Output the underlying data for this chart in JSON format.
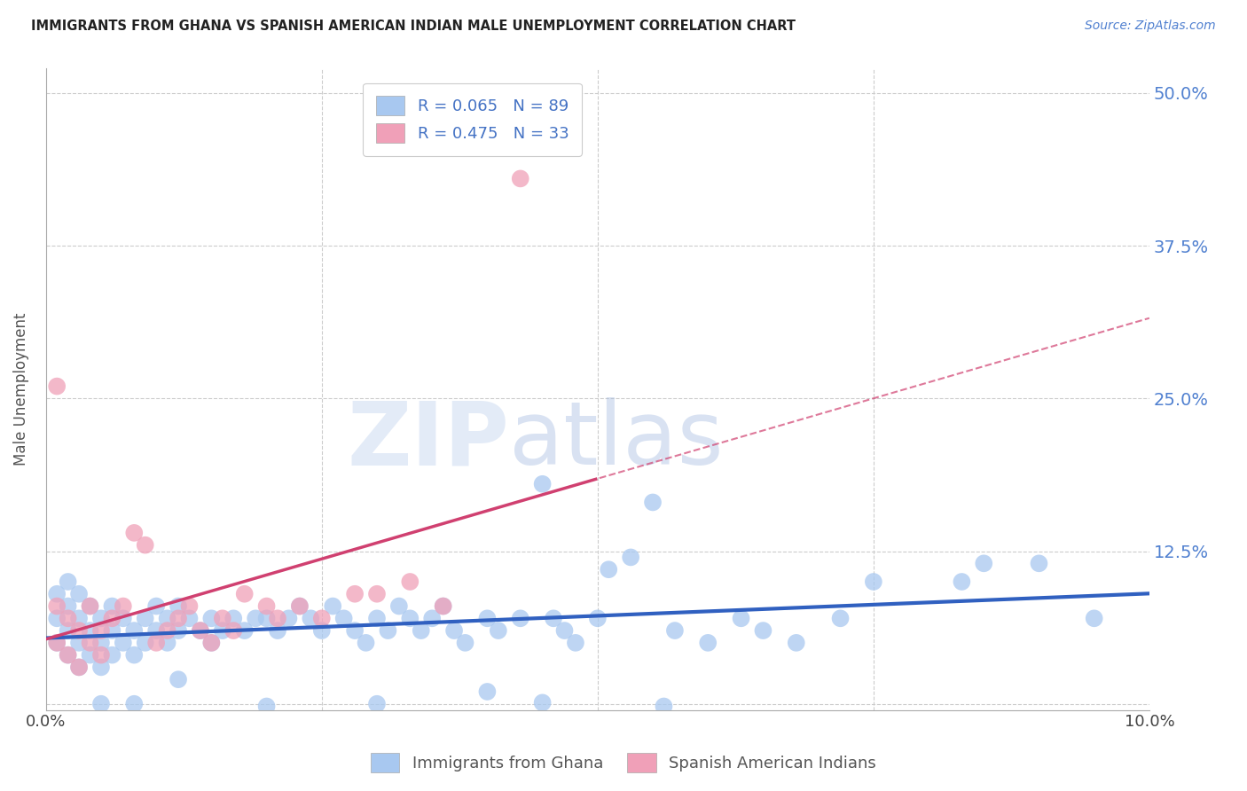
{
  "title": "IMMIGRANTS FROM GHANA VS SPANISH AMERICAN INDIAN MALE UNEMPLOYMENT CORRELATION CHART",
  "source": "Source: ZipAtlas.com",
  "ylabel": "Male Unemployment",
  "legend1_label": "Immigrants from Ghana",
  "legend2_label": "Spanish American Indians",
  "R1": 0.065,
  "N1": 89,
  "R2": 0.475,
  "N2": 33,
  "color_blue": "#a8c8f0",
  "color_pink": "#f0a0b8",
  "line_color_blue": "#3060c0",
  "line_color_pink": "#d04070",
  "watermark_zip": "ZIP",
  "watermark_atlas": "atlas",
  "background_color": "#ffffff",
  "grid_color": "#cccccc",
  "title_color": "#222222",
  "source_color": "#5080d0",
  "legend_text_color": "#4472c4",
  "tick_color": "#5080d0",
  "xlim": [
    0.0,
    0.1
  ],
  "ylim": [
    -0.005,
    0.52
  ],
  "y_ticks": [
    0.0,
    0.125,
    0.25,
    0.375,
    0.5
  ],
  "y_tick_labels": [
    "",
    "12.5%",
    "25.0%",
    "37.5%",
    "50.0%"
  ],
  "ghana_points_x": [
    0.001,
    0.001,
    0.001,
    0.002,
    0.002,
    0.002,
    0.002,
    0.003,
    0.003,
    0.003,
    0.003,
    0.004,
    0.004,
    0.004,
    0.005,
    0.005,
    0.005,
    0.006,
    0.006,
    0.006,
    0.007,
    0.007,
    0.008,
    0.008,
    0.009,
    0.009,
    0.01,
    0.01,
    0.011,
    0.011,
    0.012,
    0.012,
    0.013,
    0.014,
    0.015,
    0.015,
    0.016,
    0.017,
    0.018,
    0.019,
    0.02,
    0.021,
    0.022,
    0.023,
    0.024,
    0.025,
    0.026,
    0.027,
    0.028,
    0.029,
    0.03,
    0.031,
    0.032,
    0.033,
    0.034,
    0.035,
    0.036,
    0.037,
    0.038,
    0.04,
    0.041,
    0.043,
    0.045,
    0.046,
    0.047,
    0.048,
    0.05,
    0.051,
    0.053,
    0.055,
    0.057,
    0.06,
    0.063,
    0.065,
    0.068,
    0.072,
    0.075,
    0.083,
    0.085,
    0.09,
    0.095,
    0.005,
    0.008,
    0.012,
    0.02,
    0.03,
    0.04,
    0.045,
    0.056
  ],
  "ghana_points_y": [
    0.05,
    0.07,
    0.09,
    0.04,
    0.06,
    0.08,
    0.1,
    0.03,
    0.05,
    0.07,
    0.09,
    0.04,
    0.06,
    0.08,
    0.03,
    0.05,
    0.07,
    0.04,
    0.06,
    0.08,
    0.05,
    0.07,
    0.04,
    0.06,
    0.05,
    0.07,
    0.06,
    0.08,
    0.05,
    0.07,
    0.06,
    0.08,
    0.07,
    0.06,
    0.05,
    0.07,
    0.06,
    0.07,
    0.06,
    0.07,
    0.07,
    0.06,
    0.07,
    0.08,
    0.07,
    0.06,
    0.08,
    0.07,
    0.06,
    0.05,
    0.07,
    0.06,
    0.08,
    0.07,
    0.06,
    0.07,
    0.08,
    0.06,
    0.05,
    0.07,
    0.06,
    0.07,
    0.18,
    0.07,
    0.06,
    0.05,
    0.07,
    0.11,
    0.12,
    0.165,
    0.06,
    0.05,
    0.07,
    0.06,
    0.05,
    0.07,
    0.1,
    0.1,
    0.115,
    0.115,
    0.07,
    0.0,
    0.0,
    0.02,
    -0.002,
    0.0,
    0.01,
    0.001,
    -0.002
  ],
  "sai_points_x": [
    0.001,
    0.001,
    0.002,
    0.002,
    0.003,
    0.003,
    0.004,
    0.004,
    0.005,
    0.005,
    0.006,
    0.007,
    0.008,
    0.009,
    0.01,
    0.011,
    0.012,
    0.013,
    0.014,
    0.015,
    0.016,
    0.017,
    0.018,
    0.02,
    0.021,
    0.023,
    0.025,
    0.028,
    0.03,
    0.033,
    0.036,
    0.001,
    0.043
  ],
  "sai_points_y": [
    0.05,
    0.08,
    0.04,
    0.07,
    0.03,
    0.06,
    0.05,
    0.08,
    0.04,
    0.06,
    0.07,
    0.08,
    0.14,
    0.13,
    0.05,
    0.06,
    0.07,
    0.08,
    0.06,
    0.05,
    0.07,
    0.06,
    0.09,
    0.08,
    0.07,
    0.08,
    0.07,
    0.09,
    0.09,
    0.1,
    0.08,
    0.26,
    0.43
  ]
}
